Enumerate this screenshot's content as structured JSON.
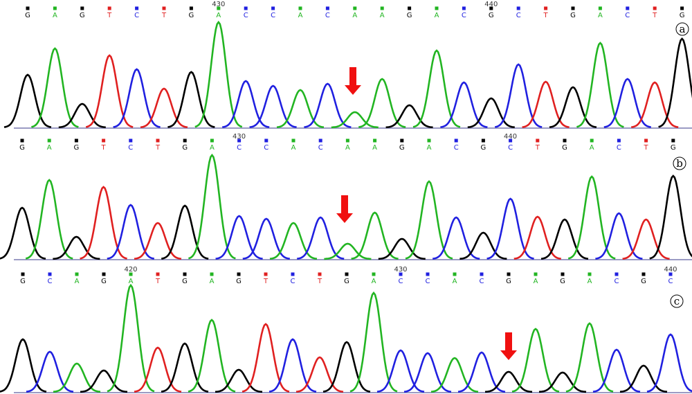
{
  "panels": [
    {
      "label": "a",
      "positions": [
        "430",
        "440"
      ],
      "bases": [
        "G",
        "A",
        "G",
        "T",
        "C",
        "T",
        "G",
        "A",
        "C",
        "C",
        "A",
        "C",
        "A",
        "A",
        "G",
        "A",
        "C",
        "G",
        "C",
        "T",
        "G",
        "A",
        "C",
        "T",
        "G"
      ],
      "peaks": [
        76,
        114,
        34,
        104,
        84,
        56,
        80,
        152,
        67,
        60,
        54,
        63,
        22,
        70,
        32,
        111,
        65,
        42,
        91,
        66,
        58,
        122,
        70,
        65,
        128
      ]
    },
    {
      "label": "b",
      "positions": [
        "430",
        "440"
      ],
      "bases": [
        "G",
        "A",
        "G",
        "T",
        "C",
        "T",
        "G",
        "A",
        "C",
        "C",
        "A",
        "C",
        "A",
        "A",
        "G",
        "A",
        "C",
        "G",
        "C",
        "T",
        "G",
        "A",
        "C",
        "T",
        "G"
      ],
      "peaks": [
        74,
        114,
        32,
        104,
        78,
        52,
        77,
        150,
        62,
        58,
        52,
        60,
        22,
        67,
        29,
        112,
        60,
        38,
        87,
        61,
        57,
        119,
        66,
        57,
        120
      ]
    },
    {
      "label": "c",
      "positions": [
        "420",
        "430",
        "440"
      ],
      "bases": [
        "G",
        "C",
        "A",
        "G",
        "A",
        "T",
        "G",
        "A",
        "G",
        "T",
        "C",
        "T",
        "G",
        "A",
        "C",
        "C",
        "A",
        "C",
        "G",
        "A",
        "G",
        "A",
        "C",
        "G",
        "C"
      ],
      "peaks": [
        76,
        58,
        41,
        31,
        154,
        64,
        70,
        104,
        32,
        98,
        76,
        50,
        72,
        143,
        60,
        56,
        49,
        57,
        29,
        91,
        28,
        99,
        61,
        38,
        83
      ]
    }
  ]
}
